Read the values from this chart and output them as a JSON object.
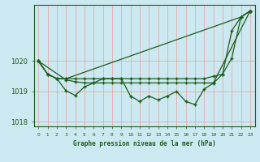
{
  "xlabel": "Graphe pression niveau de la mer (hPa)",
  "bg_color": "#cce8f0",
  "line_color": "#1a5c1a",
  "grid_color": "#e8a0a0",
  "hours": [
    0,
    1,
    2,
    3,
    4,
    5,
    6,
    7,
    8,
    9,
    10,
    11,
    12,
    13,
    14,
    15,
    16,
    17,
    18,
    19,
    20,
    21,
    22,
    23
  ],
  "ylim": [
    1017.85,
    1021.85
  ],
  "yticks": [
    1018,
    1019,
    1020
  ],
  "line1_x": [
    0,
    1,
    2,
    3,
    22,
    23
  ],
  "line1_y": [
    1020.0,
    1019.57,
    1019.42,
    1019.42,
    1021.45,
    1021.65
  ],
  "line2_x": [
    0,
    1,
    2,
    3,
    4,
    5,
    6,
    7,
    8,
    9,
    10,
    11,
    12,
    13,
    14,
    15,
    16,
    17,
    18,
    19,
    20,
    21,
    22,
    23
  ],
  "line2_y": [
    1020.0,
    1019.57,
    1019.42,
    1019.42,
    1019.42,
    1019.42,
    1019.42,
    1019.42,
    1019.42,
    1019.42,
    1019.42,
    1019.42,
    1019.42,
    1019.42,
    1019.42,
    1019.42,
    1019.42,
    1019.42,
    1019.42,
    1019.5,
    1019.57,
    1020.1,
    1021.45,
    1021.65
  ],
  "line3_x": [
    0,
    3,
    4,
    5,
    6,
    7,
    8,
    9,
    10,
    11,
    12,
    13,
    14,
    15,
    16,
    17,
    18,
    19,
    23
  ],
  "line3_y": [
    1020.0,
    1019.38,
    1019.32,
    1019.28,
    1019.28,
    1019.28,
    1019.28,
    1019.28,
    1019.28,
    1019.28,
    1019.28,
    1019.28,
    1019.28,
    1019.28,
    1019.28,
    1019.28,
    1019.28,
    1019.28,
    1021.65
  ],
  "zigzag_x": [
    0,
    1,
    2,
    3,
    4,
    5,
    6,
    7,
    8,
    9,
    10,
    11,
    12,
    13,
    14,
    15,
    16,
    17,
    18,
    19,
    20,
    21,
    22,
    23
  ],
  "zigzag_y": [
    1020.0,
    1019.57,
    1019.42,
    1019.02,
    1018.87,
    1019.15,
    1019.28,
    1019.42,
    1019.42,
    1019.42,
    1018.85,
    1018.67,
    1018.85,
    1018.72,
    1018.85,
    1019.0,
    1018.67,
    1018.57,
    1019.08,
    1019.27,
    1019.57,
    1021.0,
    1021.45,
    1021.65
  ]
}
